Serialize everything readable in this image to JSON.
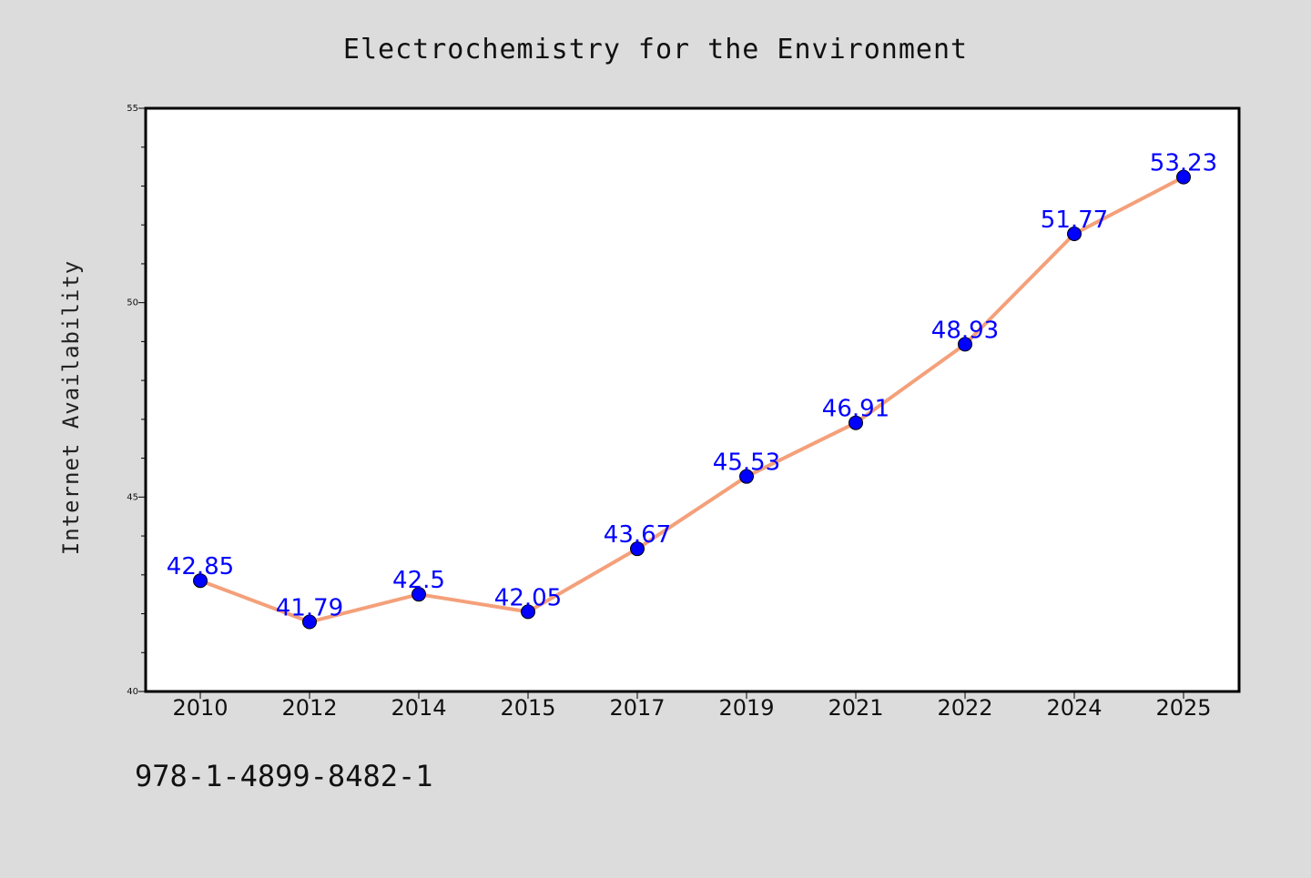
{
  "chart_data": {
    "type": "line",
    "title": "Electrochemistry for the Environment",
    "xlabel": "",
    "ylabel": "Internet Availability",
    "categories": [
      "2010",
      "2012",
      "2014",
      "2015",
      "2017",
      "2019",
      "2021",
      "2022",
      "2024",
      "2025"
    ],
    "series": [
      {
        "values": [
          42.85,
          41.79,
          42.5,
          42.05,
          43.67,
          45.53,
          46.91,
          48.93,
          51.77,
          53.23
        ],
        "labels": [
          "42.85",
          "41.79",
          "42.5",
          "42.05",
          "43.67",
          "45.53",
          "46.91",
          "48.93",
          "51.77",
          "53.23"
        ]
      }
    ],
    "ylim": [
      40,
      55
    ],
    "yticks": [
      "40",
      "45",
      "50",
      "55"
    ],
    "grid": false,
    "legend": "none"
  },
  "footer": {
    "isbn": "978-1-4899-8482-1"
  },
  "colors": {
    "background": "#dcdcdc",
    "plot_background": "#ffffff",
    "line": "#f4a07a",
    "marker": "#0000ff",
    "data_label": "#0000ff"
  }
}
